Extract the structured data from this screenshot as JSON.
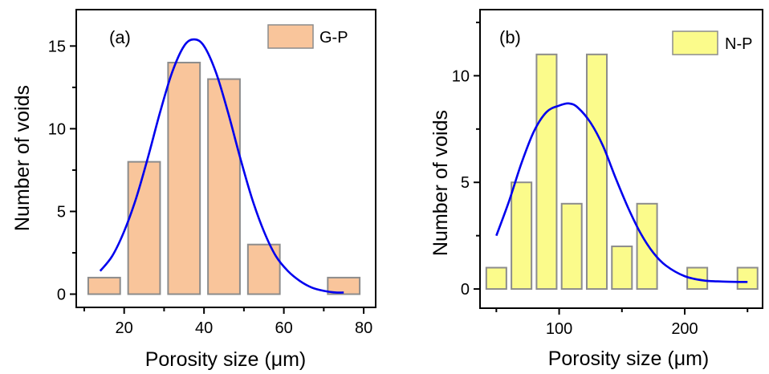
{
  "chart_data": [
    {
      "type": "bar",
      "panel_label": "(a)",
      "xlabel": "Porosity size (μm)",
      "ylabel": "Number of voids",
      "xlim": [
        8,
        83
      ],
      "ylim": [
        -0.8,
        17.2
      ],
      "xticks": [
        20,
        40,
        60,
        80
      ],
      "yticks": [
        0,
        5,
        10,
        15
      ],
      "bar_width": 8,
      "bar_color": "#f9c59b",
      "bar_edge_color": "#8c8c8c",
      "curve_color": "#0000ee",
      "legend": {
        "label": "G-P",
        "position": "top-right"
      },
      "series": [
        {
          "name": "G-P",
          "x": [
            15,
            25,
            35,
            45,
            55,
            65,
            75
          ],
          "values": [
            1,
            8,
            14,
            13,
            3,
            0,
            1
          ]
        }
      ],
      "fit_curve": {
        "x": [
          14,
          17,
          20,
          23,
          26,
          29,
          32,
          35,
          37.5,
          40,
          43,
          46,
          49,
          52,
          55,
          58,
          61,
          64,
          67,
          70,
          73,
          75
        ],
        "y": [
          1.4,
          2.3,
          3.8,
          5.8,
          8.3,
          11.0,
          13.4,
          15.0,
          15.4,
          15.0,
          13.4,
          11.0,
          8.3,
          5.8,
          3.8,
          2.3,
          1.4,
          0.8,
          0.4,
          0.2,
          0.1,
          0.1
        ]
      }
    },
    {
      "type": "bar",
      "panel_label": "(b)",
      "xlabel": "Porosity size (μm)",
      "ylabel": "Number of voids",
      "xlim": [
        37,
        262
      ],
      "ylim": [
        -0.9,
        13.1
      ],
      "xticks": [
        100,
        200
      ],
      "yticks": [
        0,
        5,
        10
      ],
      "bar_width": 16,
      "bar_color": "#fbfb8b",
      "bar_edge_color": "#8c8c8c",
      "curve_color": "#0000ee",
      "legend": {
        "label": "N-P",
        "position": "top-right"
      },
      "series": [
        {
          "name": "N-P",
          "x": [
            50,
            70,
            90,
            110,
            130,
            150,
            170,
            190,
            210,
            230,
            250
          ],
          "values": [
            1,
            5,
            11,
            4,
            11,
            2,
            4,
            0,
            1,
            0,
            1
          ]
        }
      ],
      "fit_curve": {
        "x": [
          50,
          60,
          70,
          80,
          90,
          100,
          108,
          115,
          125,
          135,
          145,
          155,
          165,
          175,
          185,
          200,
          215,
          230,
          245,
          250
        ],
        "y": [
          2.5,
          4.1,
          5.9,
          7.4,
          8.3,
          8.6,
          8.7,
          8.5,
          7.8,
          6.7,
          5.2,
          3.8,
          2.6,
          1.7,
          1.1,
          0.6,
          0.4,
          0.35,
          0.33,
          0.33
        ]
      }
    }
  ]
}
